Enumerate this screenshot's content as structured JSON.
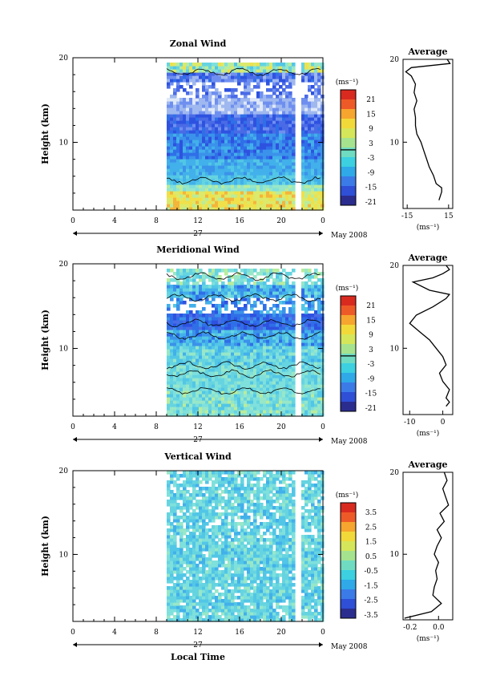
{
  "chart_data": [
    {
      "type": "heatmap",
      "title": "Zonal Wind",
      "ylabel": "Height (km)",
      "ylim": [
        2,
        20
      ],
      "yticks": [
        "10",
        "20"
      ],
      "xlim": [
        0,
        24
      ],
      "xticks": [
        "0",
        "4",
        "8",
        "12",
        "16",
        "20",
        "0"
      ],
      "date_day": "27",
      "date_month": "May 2008",
      "colorbar": {
        "unit": "(ms⁻¹)",
        "ticks": [
          "21",
          "15",
          "9",
          "3",
          "-3",
          "-9",
          "-15",
          "-21"
        ],
        "range": [
          -24,
          24
        ]
      },
      "profile": {
        "title": "Average",
        "xlabel": "(ms⁻¹)",
        "xticks": [
          "-15",
          "15"
        ],
        "xlim": [
          -18,
          18
        ],
        "yticks": [
          "10",
          "20"
        ],
        "points": [
          [
            8,
            3
          ],
          [
            10,
            4
          ],
          [
            10,
            4.5
          ],
          [
            6,
            5
          ],
          [
            4,
            6
          ],
          [
            1,
            7
          ],
          [
            -1,
            8
          ],
          [
            -3,
            9
          ],
          [
            -5,
            10
          ],
          [
            -8,
            11
          ],
          [
            -9,
            12
          ],
          [
            -9,
            13
          ],
          [
            -10,
            14
          ],
          [
            -8,
            15
          ],
          [
            -10,
            16
          ],
          [
            -9,
            17
          ],
          [
            -12,
            18
          ],
          [
            -16,
            18.5
          ],
          [
            -12,
            19
          ],
          [
            16,
            19.5
          ],
          [
            14,
            20
          ]
        ]
      }
    },
    {
      "type": "heatmap",
      "title": "Meridional Wind",
      "ylabel": "Height (km)",
      "ylim": [
        2,
        20
      ],
      "yticks": [
        "10",
        "20"
      ],
      "xlim": [
        0,
        24
      ],
      "xticks": [
        "0",
        "4",
        "8",
        "12",
        "16",
        "20",
        "0"
      ],
      "date_day": "27",
      "date_month": "May 2008",
      "colorbar": {
        "unit": "(ms⁻¹)",
        "ticks": [
          "21",
          "15",
          "9",
          "3",
          "-3",
          "-9",
          "-15",
          "-21"
        ],
        "range": [
          -24,
          24
        ]
      },
      "profile": {
        "title": "Average",
        "xlabel": "(ms⁻¹)",
        "xticks": [
          "-10",
          "0"
        ],
        "xlim": [
          -12,
          3
        ],
        "yticks": [
          "10",
          "20"
        ],
        "points": [
          [
            1,
            3
          ],
          [
            2,
            3.5
          ],
          [
            1,
            4
          ],
          [
            2,
            5
          ],
          [
            0,
            6
          ],
          [
            -1,
            7
          ],
          [
            1,
            8
          ],
          [
            0,
            9
          ],
          [
            -2,
            10
          ],
          [
            -4,
            11
          ],
          [
            -7,
            12
          ],
          [
            -10,
            13
          ],
          [
            -8,
            14
          ],
          [
            -3,
            15
          ],
          [
            1,
            16
          ],
          [
            2,
            16.5
          ],
          [
            -4,
            17
          ],
          [
            -9,
            18
          ],
          [
            -3,
            18.5
          ],
          [
            0,
            19
          ],
          [
            2,
            19.5
          ],
          [
            1,
            20
          ]
        ]
      }
    },
    {
      "type": "heatmap",
      "title": "Vertical Wind",
      "ylabel": "Height (km)",
      "xlabel": "Local Time",
      "ylim": [
        2,
        20
      ],
      "yticks": [
        "10",
        "20"
      ],
      "xlim": [
        0,
        24
      ],
      "xticks": [
        "0",
        "4",
        "8",
        "12",
        "16",
        "20",
        "0"
      ],
      "date_day": "27",
      "date_month": "May 2008",
      "colorbar": {
        "unit": "(ms⁻¹)",
        "ticks": [
          "3.5",
          "2.5",
          "1.5",
          "0.5",
          "-0.5",
          "-1.5",
          "-2.5",
          "-3.5"
        ],
        "range": [
          -4,
          4
        ]
      },
      "profile": {
        "title": "Average",
        "xlabel": "(ms⁻¹)",
        "xticks": [
          "-0.2",
          "0.0"
        ],
        "xlim": [
          -0.25,
          0.1
        ],
        "yticks": [
          "10",
          "20"
        ],
        "points": [
          [
            -0.24,
            2.2
          ],
          [
            -0.05,
            3
          ],
          [
            0.02,
            4
          ],
          [
            -0.04,
            5
          ],
          [
            -0.03,
            6
          ],
          [
            -0.01,
            7
          ],
          [
            -0.02,
            8
          ],
          [
            0.0,
            9
          ],
          [
            -0.03,
            10
          ],
          [
            -0.01,
            11
          ],
          [
            0.02,
            12
          ],
          [
            -0.01,
            13
          ],
          [
            0.04,
            14
          ],
          [
            0.01,
            15
          ],
          [
            0.07,
            16
          ],
          [
            0.05,
            17
          ],
          [
            0.03,
            18
          ],
          [
            0.06,
            19
          ],
          [
            0.04,
            20
          ]
        ]
      }
    }
  ]
}
